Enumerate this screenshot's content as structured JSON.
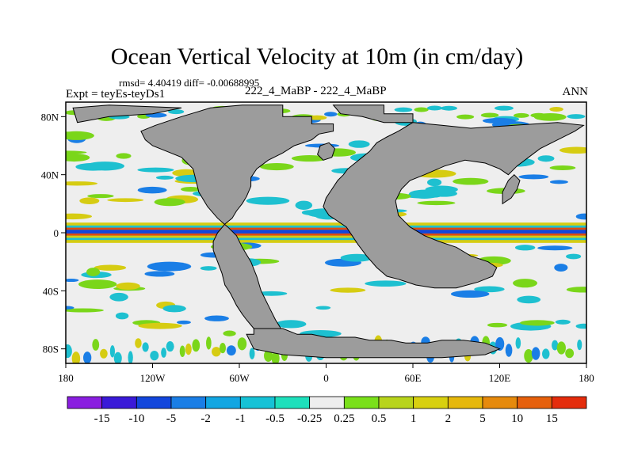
{
  "chart_data": {
    "type": "heatmap",
    "title": "Ocean Vertical Velocity at 10m (in cm/day)",
    "stats_line": "rmsd= 4.40419 diff= -0.00688995",
    "left_label": "Expt = teyEs-teyDs1",
    "center_label": "222_4_MaBP - 222_4_MaBP",
    "right_label": "ANN",
    "projection": "cylindrical equidistant",
    "xlim": [
      -180,
      180
    ],
    "ylim": [
      -90,
      90
    ],
    "x_ticks": [
      {
        "value": -180,
        "label": "180"
      },
      {
        "value": -120,
        "label": "120W"
      },
      {
        "value": -60,
        "label": "60W"
      },
      {
        "value": 0,
        "label": "0"
      },
      {
        "value": 60,
        "label": "60E"
      },
      {
        "value": 120,
        "label": "120E"
      },
      {
        "value": 180,
        "label": "180"
      }
    ],
    "y_ticks": [
      {
        "value": 80,
        "label": "80N"
      },
      {
        "value": 40,
        "label": "40N"
      },
      {
        "value": 0,
        "label": "0"
      },
      {
        "value": -40,
        "label": "40S"
      },
      {
        "value": -80,
        "label": "80S"
      }
    ],
    "colorbar": {
      "boundaries": [
        "-15",
        "-10",
        "-5",
        "-2",
        "-1",
        "-0.5",
        "-0.25",
        "0.25",
        "0.5",
        "1",
        "2",
        "5",
        "10",
        "15"
      ],
      "colors": [
        "#8a1ee0",
        "#3a1ad8",
        "#1246dc",
        "#1a7ee6",
        "#12a6e2",
        "#16c2d6",
        "#1ee0bc",
        "#eeeeee",
        "#7ae01a",
        "#b8d41c",
        "#d8d010",
        "#e6b80c",
        "#e68a0c",
        "#e6600c",
        "#e42c0c"
      ]
    },
    "land_color": "#9c9c9c",
    "band_colors": {
      "eq_pos": "#e04a10",
      "eq_neg": "#1246dc",
      "green": "#7ad61a",
      "yellow": "#d6cc12",
      "cyan": "#1ec0d0",
      "blue": "#1a7ee6"
    }
  }
}
